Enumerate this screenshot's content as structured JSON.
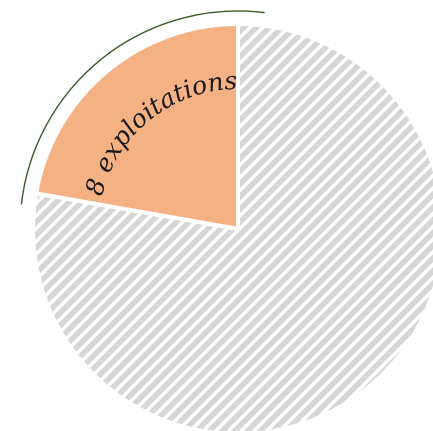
{
  "chart_data": {
    "type": "pie",
    "slices": [
      {
        "label": "8 exploitations",
        "value": 8,
        "color": "#f4b183",
        "pattern": "solid"
      },
      {
        "label": "",
        "value": 28,
        "color": "#d6d6d6",
        "pattern": "hatched"
      }
    ],
    "highlighted_slice": 0,
    "legend": "none"
  }
}
